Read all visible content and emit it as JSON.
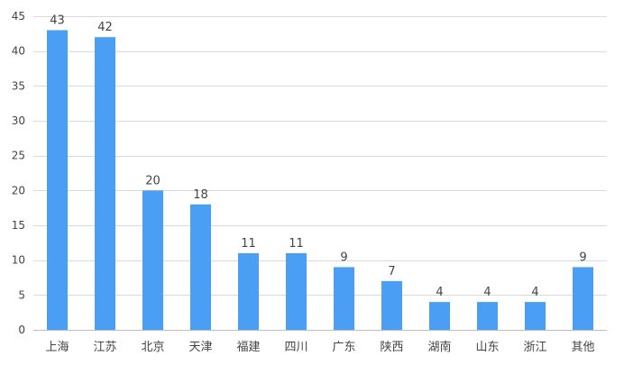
{
  "chart_data": {
    "type": "bar",
    "categories": [
      "上海",
      "江苏",
      "北京",
      "天津",
      "福建",
      "四川",
      "广东",
      "陕西",
      "湖南",
      "山东",
      "浙江",
      "其他"
    ],
    "values": [
      43,
      42,
      20,
      18,
      11,
      11,
      9,
      7,
      4,
      4,
      4,
      9
    ],
    "y_ticks": [
      "0",
      "5",
      "10",
      "15",
      "20",
      "25",
      "30",
      "35",
      "40",
      "45"
    ],
    "ylim": [
      0,
      45
    ],
    "grid": true,
    "bar_color": "#4a9ff5",
    "title": "",
    "xlabel": "",
    "ylabel": ""
  }
}
